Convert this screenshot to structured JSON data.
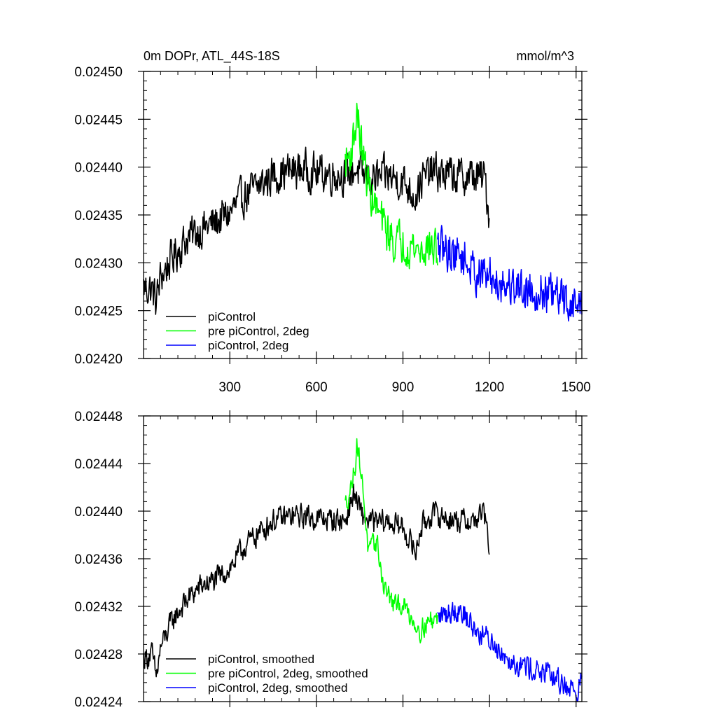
{
  "chart_data": [
    {
      "type": "line",
      "title": "0m DOPr, ATL_44S-18S",
      "units": "mmol/m^3",
      "xlim": [
        1,
        1520
      ],
      "ylim": [
        0.0242,
        0.0245
      ],
      "x_ticks": [
        300,
        600,
        900,
        1200,
        1500
      ],
      "x_tick_labels": [
        "300",
        "600",
        "900",
        "1200",
        "1500"
      ],
      "y_ticks": [
        0.0242,
        0.02425,
        0.0243,
        0.02435,
        0.0244,
        0.02445,
        0.0245
      ],
      "y_tick_labels": [
        "0.02420",
        "0.02425",
        "0.02430",
        "0.02435",
        "0.02440",
        "0.02445",
        "0.02450"
      ],
      "legend_position": "bottom-left",
      "series": [
        {
          "name": "piControl",
          "color": "#000000",
          "x_range": [
            1,
            1200
          ],
          "points": [
            [
              1,
              0.024275
            ],
            [
              30,
              0.024272
            ],
            [
              45,
              0.02426
            ],
            [
              60,
              0.024285
            ],
            [
              100,
              0.024305
            ],
            [
              150,
              0.024325
            ],
            [
              200,
              0.024335
            ],
            [
              250,
              0.024342
            ],
            [
              300,
              0.024352
            ],
            [
              350,
              0.02437
            ],
            [
              400,
              0.02438
            ],
            [
              450,
              0.024392
            ],
            [
              500,
              0.024395
            ],
            [
              550,
              0.024398
            ],
            [
              600,
              0.024394
            ],
            [
              650,
              0.024393
            ],
            [
              700,
              0.024392
            ],
            [
              740,
              0.024398
            ],
            [
              760,
              0.02439
            ],
            [
              800,
              0.024388
            ],
            [
              850,
              0.024391
            ],
            [
              900,
              0.024385
            ],
            [
              945,
              0.02437
            ],
            [
              960,
              0.024385
            ],
            [
              1000,
              0.024395
            ],
            [
              1050,
              0.024392
            ],
            [
              1100,
              0.02439
            ],
            [
              1150,
              0.02439
            ],
            [
              1185,
              0.024388
            ],
            [
              1200,
              0.024345
            ]
          ],
          "noise": 2.8e-05
        },
        {
          "name": "pre piControl, 2deg",
          "color": "#00ff00",
          "x_range": [
            700,
            1020
          ],
          "points": [
            [
              700,
              0.024405
            ],
            [
              720,
              0.024415
            ],
            [
              735,
              0.02444
            ],
            [
              740,
              0.02446
            ],
            [
              750,
              0.024435
            ],
            [
              765,
              0.024405
            ],
            [
              785,
              0.024375
            ],
            [
              810,
              0.024355
            ],
            [
              840,
              0.024335
            ],
            [
              870,
              0.024322
            ],
            [
              900,
              0.024322
            ],
            [
              930,
              0.024318
            ],
            [
              960,
              0.024312
            ],
            [
              990,
              0.024318
            ],
            [
              1020,
              0.024312
            ]
          ],
          "noise": 3e-05
        },
        {
          "name": "piControl, 2deg",
          "color": "#0000ff",
          "x_range": [
            1020,
            1520
          ],
          "points": [
            [
              1020,
              0.024315
            ],
            [
              1060,
              0.024312
            ],
            [
              1100,
              0.024308
            ],
            [
              1150,
              0.02429
            ],
            [
              1200,
              0.024285
            ],
            [
              1250,
              0.024278
            ],
            [
              1300,
              0.024275
            ],
            [
              1350,
              0.024272
            ],
            [
              1400,
              0.024268
            ],
            [
              1450,
              0.024262
            ],
            [
              1500,
              0.024255
            ],
            [
              1520,
              0.024258
            ]
          ],
          "noise": 3e-05
        }
      ]
    },
    {
      "type": "line",
      "title": "",
      "xlim": [
        1,
        1520
      ],
      "ylim": [
        0.02424,
        0.02448
      ],
      "x_ticks": [
        300,
        600,
        900,
        1200,
        1500
      ],
      "x_tick_labels": [],
      "y_ticks": [
        0.02424,
        0.02428,
        0.02432,
        0.02436,
        0.0244,
        0.02444,
        0.02448
      ],
      "y_tick_labels": [
        "0.02424",
        "0.02428",
        "0.02432",
        "0.02436",
        "0.02440",
        "0.02444",
        "0.02448"
      ],
      "legend_position": "bottom-left",
      "series": [
        {
          "name": "piControl, smoothed",
          "color": "#000000",
          "x_range": [
            1,
            1200
          ],
          "points": [
            [
              1,
              0.024276
            ],
            [
              30,
              0.02428
            ],
            [
              45,
              0.02426
            ],
            [
              60,
              0.024285
            ],
            [
              100,
              0.024308
            ],
            [
              150,
              0.024325
            ],
            [
              200,
              0.024337
            ],
            [
              250,
              0.024342
            ],
            [
              300,
              0.024352
            ],
            [
              350,
              0.02437
            ],
            [
              400,
              0.024382
            ],
            [
              450,
              0.024392
            ],
            [
              500,
              0.024395
            ],
            [
              550,
              0.024396
            ],
            [
              600,
              0.024394
            ],
            [
              650,
              0.024393
            ],
            [
              700,
              0.024392
            ],
            [
              730,
              0.024415
            ],
            [
              760,
              0.024395
            ],
            [
              800,
              0.02439
            ],
            [
              850,
              0.024391
            ],
            [
              900,
              0.024386
            ],
            [
              945,
              0.024365
            ],
            [
              960,
              0.024385
            ],
            [
              1000,
              0.024398
            ],
            [
              1050,
              0.024394
            ],
            [
              1100,
              0.024392
            ],
            [
              1150,
              0.024392
            ],
            [
              1180,
              0.0244
            ],
            [
              1200,
              0.024368
            ]
          ],
          "noise": 1.4e-05
        },
        {
          "name": "pre piControl, 2deg, smoothed",
          "color": "#00ff00",
          "x_range": [
            700,
            1020
          ],
          "points": [
            [
              700,
              0.024405
            ],
            [
              720,
              0.02442
            ],
            [
              735,
              0.02444
            ],
            [
              740,
              0.024458
            ],
            [
              750,
              0.024442
            ],
            [
              765,
              0.02441
            ],
            [
              780,
              0.024365
            ],
            [
              810,
              0.024375
            ],
            [
              830,
              0.02434
            ],
            [
              850,
              0.02433
            ],
            [
              870,
              0.02432
            ],
            [
              900,
              0.024322
            ],
            [
              930,
              0.02431
            ],
            [
              960,
              0.0243
            ],
            [
              990,
              0.024308
            ],
            [
              1020,
              0.02431
            ]
          ],
          "noise": 1.2e-05
        },
        {
          "name": "piControl, 2deg, smoothed",
          "color": "#0000ff",
          "x_range": [
            1020,
            1520
          ],
          "points": [
            [
              1020,
              0.02431
            ],
            [
              1060,
              0.024315
            ],
            [
              1100,
              0.024318
            ],
            [
              1150,
              0.0243
            ],
            [
              1200,
              0.024292
            ],
            [
              1250,
              0.02428
            ],
            [
              1300,
              0.024272
            ],
            [
              1350,
              0.024268
            ],
            [
              1400,
              0.024262
            ],
            [
              1450,
              0.024256
            ],
            [
              1500,
              0.024248
            ],
            [
              1520,
              0.024258
            ]
          ],
          "noise": 1.4e-05
        }
      ]
    }
  ]
}
